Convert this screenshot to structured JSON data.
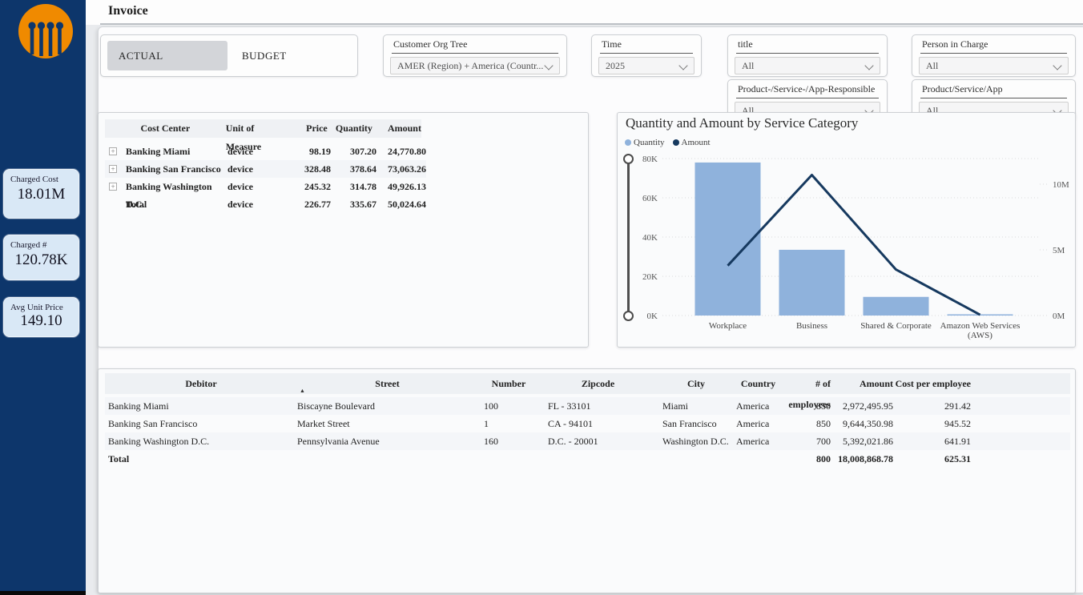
{
  "app": {
    "title": "Invoice"
  },
  "brand": {
    "sidebar_color": "#0d366b",
    "logo_orange": "#f08a00",
    "accent_light_blue": "#8fb2dc",
    "accent_dark_blue": "#16395f"
  },
  "sidebar": {
    "kpis": [
      {
        "label": "Charged Cost",
        "value": "18.01M"
      },
      {
        "label": "Charged #",
        "value": "120.78K"
      },
      {
        "label": "Avg Unit Price",
        "value": "149.10"
      }
    ]
  },
  "toggle": {
    "options": [
      {
        "label": "ACTUAL",
        "selected": true
      },
      {
        "label": "BUDGET",
        "selected": false
      }
    ]
  },
  "filters": [
    {
      "label": "Customer Org Tree",
      "value": "AMER (Region) + America (Countr..."
    },
    {
      "label": "Time",
      "value": "2025"
    },
    {
      "label": "title",
      "value": "All"
    },
    {
      "label": "Person in Charge",
      "value": "All"
    },
    {
      "label": "Product-/Service-/App-Responsible",
      "value": "All"
    },
    {
      "label": "Product/Service/App",
      "value": "All"
    }
  ],
  "cost_table": {
    "expand_glyph": "+",
    "columns": [
      "Cost Center",
      "Unit of Measure",
      "Price",
      "Quantity",
      "Amount"
    ],
    "rows": [
      {
        "cost_center": "Banking Miami",
        "unit": "device",
        "price": "98.19",
        "quantity": "307.20",
        "amount": "24,770.80"
      },
      {
        "cost_center": "Banking San Francisco",
        "unit": "device",
        "price": "328.48",
        "quantity": "378.64",
        "amount": "73,063.26"
      },
      {
        "cost_center": "Banking Washington D.C.",
        "unit": "device",
        "price": "245.32",
        "quantity": "314.78",
        "amount": "49,926.13"
      },
      {
        "cost_center": "Total",
        "unit": "device",
        "price": "226.77",
        "quantity": "335.67",
        "amount": "50,024.64"
      }
    ]
  },
  "chart_data": {
    "type": "combo bar+line",
    "title": "Quantity and Amount by Service Category",
    "categories": [
      "Workplace",
      "Business",
      "Shared & Corporate",
      "Amazon Web Services (AWS)"
    ],
    "series": [
      {
        "name": "Quantity",
        "type": "bar",
        "axis": "left",
        "color": "#8fb2dc",
        "values": [
          78000,
          33500,
          9500,
          400
        ]
      },
      {
        "name": "Amount",
        "type": "line",
        "axis": "right",
        "color": "#16395f",
        "values": [
          3800000,
          10700000,
          3500000,
          60000
        ]
      }
    ],
    "left_axis": {
      "max": 80000,
      "ticks": [
        {
          "label": "0K",
          "value": 0
        },
        {
          "label": "20K",
          "value": 20000
        },
        {
          "label": "40K",
          "value": 40000
        },
        {
          "label": "60K",
          "value": 60000
        },
        {
          "label": "80K",
          "value": 80000
        }
      ]
    },
    "right_axis": {
      "max": 11950000,
      "ticks": [
        {
          "label": "0M",
          "value": 0
        },
        {
          "label": "5M",
          "value": 5000000
        },
        {
          "label": "10M",
          "value": 10000000
        }
      ]
    },
    "legend_position": "top-left",
    "grid": "dotted-horizontal"
  },
  "debitor_table": {
    "sort_glyph": "▲",
    "columns": [
      "Debitor",
      "Street",
      "Number",
      "Zipcode",
      "City",
      "Country",
      "# of employees",
      "Amount",
      "Cost per employee"
    ],
    "rows": [
      {
        "debitor": "Banking Miami",
        "street": "Biscayne Boulevard",
        "number": "100",
        "zipcode": "FL - 33101",
        "city": "Miami",
        "country": "America",
        "employees": "850",
        "amount": "2,972,495.95",
        "cost_per_employee": "291.42"
      },
      {
        "debitor": "Banking San Francisco",
        "street": "Market Street",
        "number": "1",
        "zipcode": "CA - 94101",
        "city": "San Francisco",
        "country": "America",
        "employees": "850",
        "amount": "9,644,350.98",
        "cost_per_employee": "945.52"
      },
      {
        "debitor": "Banking Washington D.C.",
        "street": "Pennsylvania Avenue",
        "number": "160",
        "zipcode": "D.C. - 20001",
        "city": "Washington D.C.",
        "country": "America",
        "employees": "700",
        "amount": "5,392,021.86",
        "cost_per_employee": "641.91"
      }
    ],
    "total": {
      "debitor": "Total",
      "street": "",
      "number": "",
      "zipcode": "",
      "city": "",
      "country": "",
      "employees": "800",
      "amount": "18,008,868.78",
      "cost_per_employee": "625.31"
    }
  }
}
